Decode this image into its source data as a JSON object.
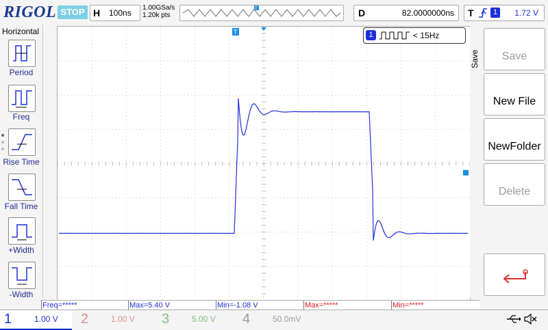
{
  "brand": "RIGOL",
  "run_state": "STOP",
  "horizontal": {
    "key": "H",
    "scale": "100ns"
  },
  "sample": {
    "rate": "1.00GSa/s",
    "points": "1.20k pts"
  },
  "delay": {
    "key": "D",
    "value": "82.0000000ns"
  },
  "trigger": {
    "key": "T",
    "edge_icon": "rising-edge-icon",
    "source": "1",
    "level": "1.72 V"
  },
  "left_menu": {
    "title": "Horizontal",
    "items": [
      {
        "label": "Period",
        "icon": "period-icon"
      },
      {
        "label": "Freq",
        "icon": "frequency-icon"
      },
      {
        "label": "Rise Time",
        "icon": "rise-time-icon"
      },
      {
        "label": "Fall Time",
        "icon": "fall-time-icon"
      },
      {
        "label": "+Width",
        "icon": "positive-width-icon"
      },
      {
        "label": "-Width",
        "icon": "negative-width-icon"
      }
    ]
  },
  "freq_indicator": {
    "channel": "1",
    "text": "< 15Hz"
  },
  "right_menu": {
    "title": "Save",
    "buttons": [
      {
        "label": "Save",
        "enabled": false
      },
      {
        "label": "New File",
        "enabled": true
      },
      {
        "label": "NewFolder",
        "enabled": true
      },
      {
        "label": "Delete",
        "enabled": false
      },
      {
        "label": "",
        "icon": "return-arrow-icon",
        "enabled": true
      }
    ]
  },
  "measurements": [
    {
      "text": "Freq=*****",
      "color": "#1d2fd6"
    },
    {
      "text": "Max=5.40 V",
      "color": "#1d2fd6"
    },
    {
      "text": "Min=-1.08 V",
      "color": "#1d2fd6"
    },
    {
      "text": "Max=*****",
      "color": "#d62020"
    },
    {
      "text": "Min=*****",
      "color": "#d62020"
    }
  ],
  "channels": [
    {
      "num": "1",
      "scale": "1.00 V",
      "color": "#1d2fd6",
      "active": true
    },
    {
      "num": "2",
      "scale": "1.00 V",
      "color": "#e08a8a",
      "active": false
    },
    {
      "num": "3",
      "scale": "5.00 V",
      "color": "#7fc07f",
      "active": false
    },
    {
      "num": "4",
      "scale": "50.0mV",
      "color": "#9a9a9a",
      "active": false
    }
  ],
  "status_icons": [
    "usb-icon",
    "sound-muted-icon"
  ],
  "trace_color": "#1d2fd6",
  "waveform": {
    "volts_per_div": 1.0,
    "time_per_div_ns": 100,
    "low_level_v": -0.05,
    "high_level_v": 3.5,
    "overshoot_peak_v": 5.4,
    "undershoot_min_v": -1.08
  }
}
